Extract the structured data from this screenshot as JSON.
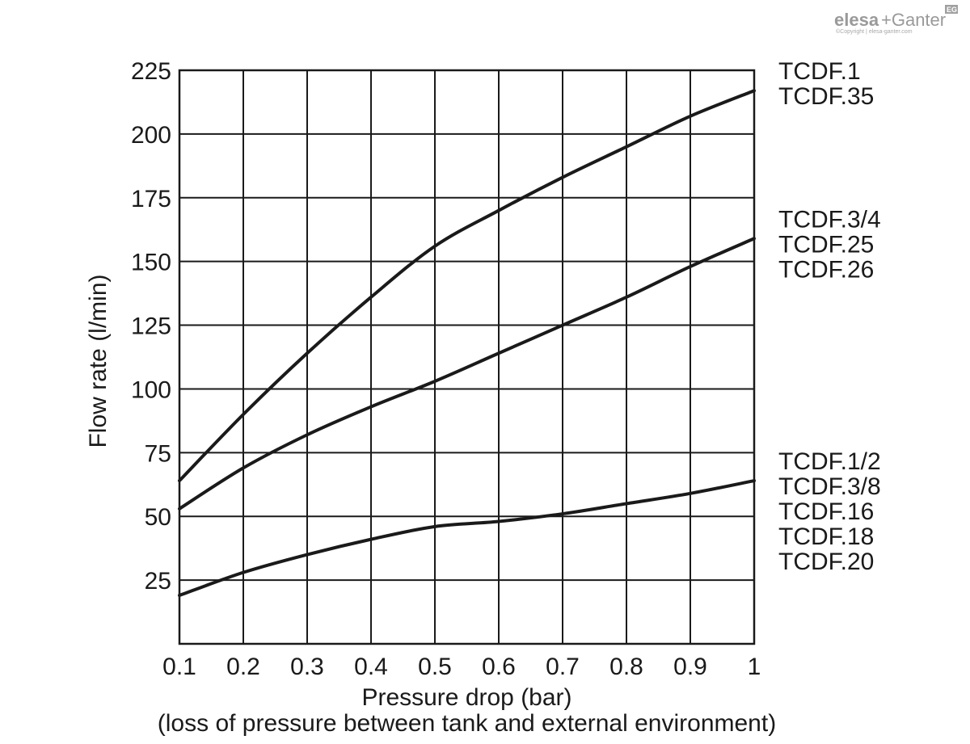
{
  "brand": {
    "name_bold": "elesa",
    "name_rest": "+Ganter",
    "badge": "EG",
    "copyright": "©Copyright | elesa-ganter.com"
  },
  "chart_data": {
    "type": "line",
    "xlabel": "Pressure drop (bar)",
    "xlabel_note": "(loss of pressure between tank and external environment)",
    "ylabel": "Flow rate (l/min)",
    "xlim": [
      0.1,
      1.0
    ],
    "ylim": [
      0,
      225
    ],
    "x_ticks": [
      "0.1",
      "0.2",
      "0.3",
      "0.4",
      "0.5",
      "0.6",
      "0.7",
      "0.8",
      "0.9",
      "1"
    ],
    "y_ticks": [
      "25",
      "50",
      "75",
      "100",
      "125",
      "150",
      "175",
      "200",
      "225"
    ],
    "grid": true,
    "legend_placement": "right",
    "x": [
      0.1,
      0.2,
      0.3,
      0.4,
      0.5,
      0.6,
      0.7,
      0.8,
      0.9,
      1.0
    ],
    "series": [
      {
        "labels": [
          "TCDF.1",
          "TCDF.35"
        ],
        "values": [
          64,
          90,
          114,
          136,
          156,
          170,
          183,
          195,
          207,
          217
        ]
      },
      {
        "labels": [
          "TCDF.3/4",
          "TCDF.25",
          "TCDF.26"
        ],
        "values": [
          53,
          69,
          82,
          93,
          103,
          114,
          125,
          136,
          148,
          159
        ]
      },
      {
        "labels": [
          "TCDF.1/2",
          "TCDF.3/8",
          "TCDF.16",
          "TCDF.18",
          "TCDF.20"
        ],
        "values": [
          19,
          28,
          35,
          41,
          46,
          48,
          51,
          55,
          59,
          64
        ]
      }
    ]
  }
}
